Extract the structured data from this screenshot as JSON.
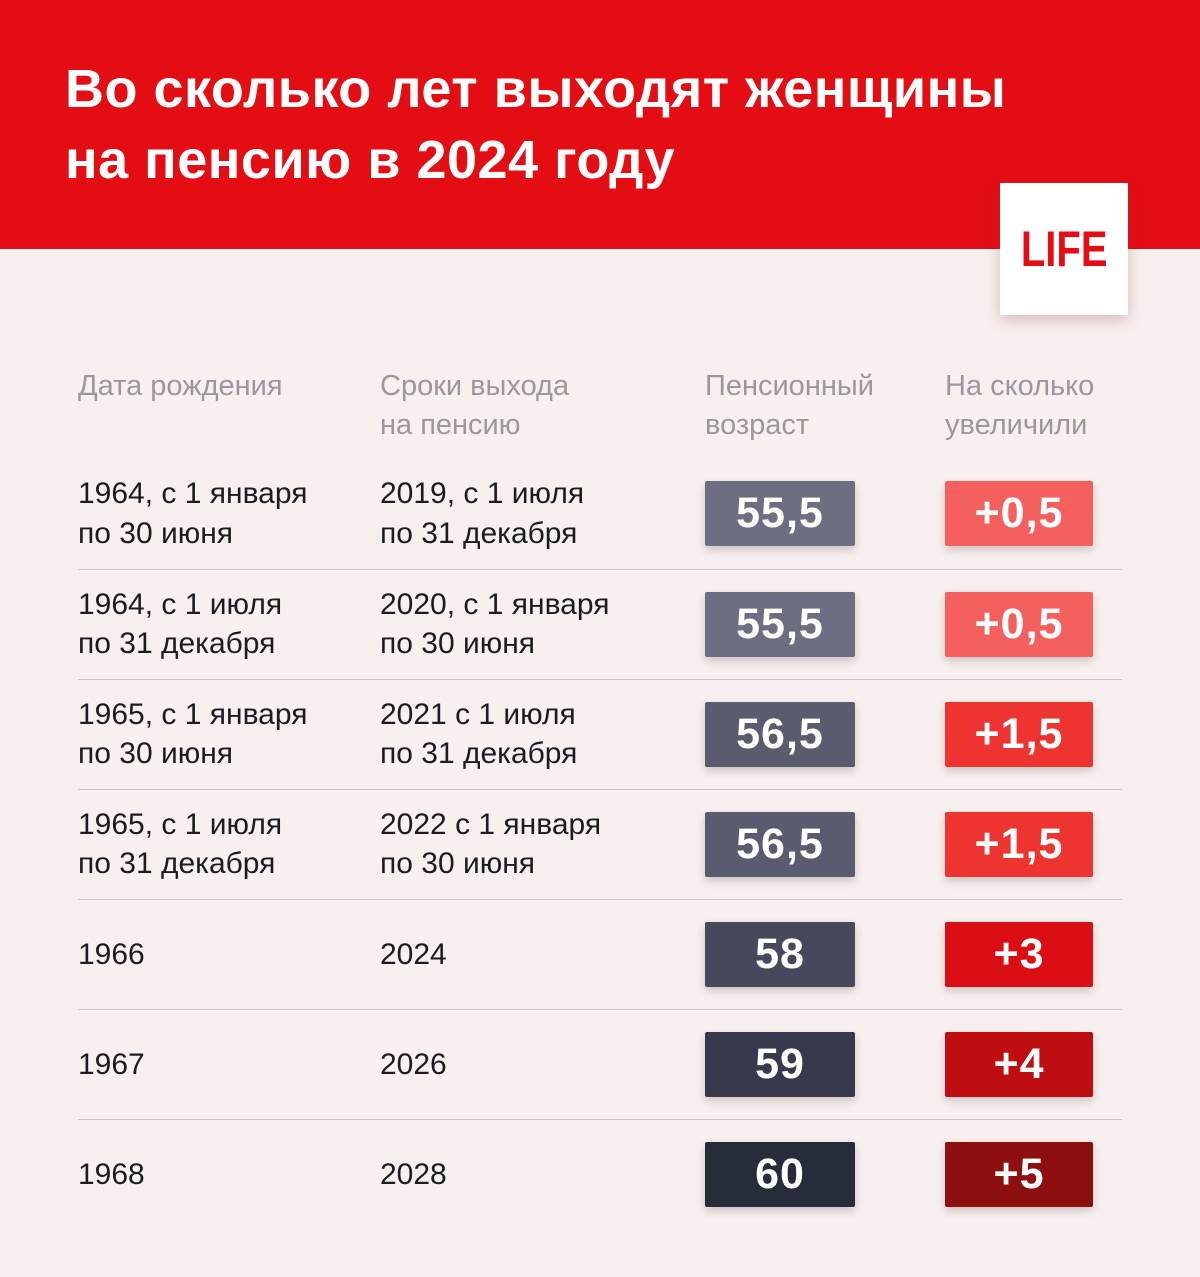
{
  "header": {
    "title": "Во сколько лет выходят женщины\nна пенсию в 2024 году",
    "logo_text": "LIFE"
  },
  "colors": {
    "banner_red": "#E30D13",
    "logo_red": "#E30D13",
    "background": "#F8F0EF",
    "column_header_gray": "#9C96A0",
    "row_text": "#1B1B24",
    "divider": "#CBC4C6",
    "badge_text": "#FFFFFF"
  },
  "table": {
    "columns": [
      "Дата рождения",
      "Сроки выхода\nна пенсию",
      "Пенсионный\nвозраст",
      "На сколько\nувеличили"
    ],
    "rows": [
      {
        "birth": "1964, с 1 января\nпо 30 июня",
        "retirement": "2019, с 1 июля\nпо 31 декабря",
        "pension_age": "55,5",
        "increase": "+0,5",
        "age_badge_color": "#6B6F81",
        "increase_badge_color": "#F4605E"
      },
      {
        "birth": "1964, с 1 июля\nпо 31 декабря",
        "retirement": "2020, с 1 января\nпо 30 июня",
        "pension_age": "55,5",
        "increase": "+0,5",
        "age_badge_color": "#6B6F81",
        "increase_badge_color": "#F4605E"
      },
      {
        "birth": "1965, с 1 января\nпо 30 июня",
        "retirement": "2021 с 1 июля\nпо 31 декабря",
        "pension_age": "56,5",
        "increase": "+1,5",
        "age_badge_color": "#585C6E",
        "increase_badge_color": "#EE3431"
      },
      {
        "birth": "1965, с 1 июля\nпо 31 декабря",
        "retirement": "2022 с 1 января\nпо 30 июня",
        "pension_age": "56,5",
        "increase": "+1,5",
        "age_badge_color": "#585C6E",
        "increase_badge_color": "#EE3431"
      },
      {
        "birth": "1966",
        "retirement": "2024",
        "pension_age": "58",
        "increase": "+3",
        "age_badge_color": "#45495B",
        "increase_badge_color": "#DB0F13"
      },
      {
        "birth": "1967",
        "retirement": "2026",
        "pension_age": "59",
        "increase": "+4",
        "age_badge_color": "#363A4C",
        "increase_badge_color": "#BE0E11"
      },
      {
        "birth": "1968",
        "retirement": "2028",
        "pension_age": "60",
        "increase": "+5",
        "age_badge_color": "#272C3A",
        "increase_badge_color": "#8E0F10"
      }
    ]
  },
  "chart_data": {
    "type": "table",
    "title": "Во сколько лет выходят женщины на пенсию в 2024 году",
    "columns": [
      "Дата рождения",
      "Сроки выхода на пенсию",
      "Пенсионный возраст",
      "На сколько увеличили"
    ],
    "rows": [
      [
        "1964, с 1 января по 30 июня",
        "2019, с 1 июля по 31 декабря",
        "55,5",
        "+0,5"
      ],
      [
        "1964, с 1 июля по 31 декабря",
        "2020, с 1 января по 30 июня",
        "55,5",
        "+0,5"
      ],
      [
        "1965, с 1 января по 30 июня",
        "2021 с 1 июля по 31 декабря",
        "56,5",
        "+1,5"
      ],
      [
        "1965, с 1 июля по 31 декабря",
        "2022 с 1 января по 30 июня",
        "56,5",
        "+1,5"
      ],
      [
        "1966",
        "2024",
        "58",
        "+3"
      ],
      [
        "1967",
        "2026",
        "59",
        "+4"
      ],
      [
        "1968",
        "2028",
        "60",
        "+5"
      ]
    ]
  }
}
